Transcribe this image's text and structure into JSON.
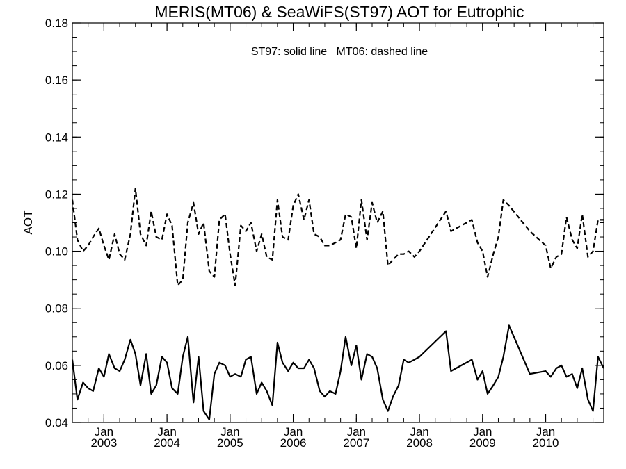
{
  "chart_data": {
    "type": "line",
    "title": "MERIS(MT06) & SeaWiFS(ST97)  AOT for Eutrophic",
    "ylabel": "AOT",
    "xlabel": "",
    "annotation": "ST97: solid line   MT06: dashed line",
    "xlim": [
      2002.5,
      2010.92
    ],
    "ylim": [
      0.04,
      0.18
    ],
    "y_ticks": [
      "0.04",
      "0.06",
      "0.08",
      "0.10",
      "0.12",
      "0.14",
      "0.16",
      "0.18"
    ],
    "x_ticks": [
      {
        "x": 2003.0,
        "month": "Jan",
        "year": "2003"
      },
      {
        "x": 2004.0,
        "month": "Jan",
        "year": "2004"
      },
      {
        "x": 2005.0,
        "month": "Jan",
        "year": "2005"
      },
      {
        "x": 2006.0,
        "month": "Jan",
        "year": "2006"
      },
      {
        "x": 2007.0,
        "month": "Jan",
        "year": "2007"
      },
      {
        "x": 2008.0,
        "month": "Jan",
        "year": "2008"
      },
      {
        "x": 2009.0,
        "month": "Jan",
        "year": "2009"
      },
      {
        "x": 2010.0,
        "month": "Jan",
        "year": "2010"
      }
    ],
    "grid": false,
    "series": [
      {
        "name": "MT06",
        "style": "dashed",
        "color": "#000000",
        "x": [
          2002.5,
          2002.58,
          2002.67,
          2002.75,
          2002.83,
          2002.92,
          2003.0,
          2003.08,
          2003.17,
          2003.25,
          2003.33,
          2003.42,
          2003.5,
          2003.58,
          2003.67,
          2003.75,
          2003.83,
          2003.92,
          2004.0,
          2004.08,
          2004.17,
          2004.25,
          2004.33,
          2004.42,
          2004.5,
          2004.58,
          2004.67,
          2004.75,
          2004.83,
          2004.92,
          2005.0,
          2005.08,
          2005.17,
          2005.25,
          2005.33,
          2005.42,
          2005.5,
          2005.58,
          2005.67,
          2005.75,
          2005.83,
          2005.92,
          2006.0,
          2006.08,
          2006.17,
          2006.25,
          2006.33,
          2006.42,
          2006.5,
          2006.58,
          2006.67,
          2006.75,
          2006.83,
          2006.92,
          2007.0,
          2007.08,
          2007.17,
          2007.25,
          2007.33,
          2007.42,
          2007.5,
          2007.58,
          2007.67,
          2007.75,
          2007.83,
          2007.92,
          2008.0,
          2008.42,
          2008.5,
          2008.58,
          2008.83,
          2008.92,
          2009.0,
          2009.08,
          2009.17,
          2009.25,
          2009.33,
          2009.42,
          2009.75,
          2010.0,
          2010.08,
          2010.17,
          2010.25,
          2010.33,
          2010.42,
          2010.5,
          2010.58,
          2010.67,
          2010.75,
          2010.83,
          2010.92
        ],
        "y": [
          0.118,
          0.104,
          0.1,
          0.102,
          0.105,
          0.108,
          0.102,
          0.097,
          0.106,
          0.099,
          0.097,
          0.106,
          0.122,
          0.106,
          0.102,
          0.114,
          0.105,
          0.104,
          0.113,
          0.109,
          0.088,
          0.09,
          0.11,
          0.117,
          0.106,
          0.11,
          0.093,
          0.091,
          0.111,
          0.113,
          0.099,
          0.088,
          0.109,
          0.107,
          0.11,
          0.1,
          0.106,
          0.098,
          0.097,
          0.118,
          0.105,
          0.104,
          0.116,
          0.12,
          0.111,
          0.118,
          0.106,
          0.105,
          0.102,
          0.102,
          0.103,
          0.104,
          0.113,
          0.112,
          0.101,
          0.118,
          0.104,
          0.117,
          0.11,
          0.114,
          0.095,
          0.097,
          0.099,
          0.099,
          0.1,
          0.098,
          0.1,
          0.114,
          0.107,
          0.108,
          0.111,
          0.103,
          0.1,
          0.091,
          0.099,
          0.105,
          0.118,
          0.116,
          0.107,
          0.102,
          0.094,
          0.098,
          0.099,
          0.112,
          0.104,
          0.101,
          0.113,
          0.098,
          0.1,
          0.111,
          0.111
        ]
      },
      {
        "name": "ST97",
        "style": "solid",
        "color": "#000000",
        "x": [
          2002.5,
          2002.58,
          2002.67,
          2002.75,
          2002.83,
          2002.92,
          2003.0,
          2003.08,
          2003.17,
          2003.25,
          2003.33,
          2003.42,
          2003.5,
          2003.58,
          2003.67,
          2003.75,
          2003.83,
          2003.92,
          2004.0,
          2004.08,
          2004.17,
          2004.25,
          2004.33,
          2004.42,
          2004.5,
          2004.58,
          2004.67,
          2004.75,
          2004.83,
          2004.92,
          2005.0,
          2005.08,
          2005.17,
          2005.25,
          2005.33,
          2005.42,
          2005.5,
          2005.58,
          2005.67,
          2005.75,
          2005.83,
          2005.92,
          2006.0,
          2006.08,
          2006.17,
          2006.25,
          2006.33,
          2006.42,
          2006.5,
          2006.58,
          2006.67,
          2006.75,
          2006.83,
          2006.92,
          2007.0,
          2007.08,
          2007.17,
          2007.25,
          2007.33,
          2007.42,
          2007.5,
          2007.58,
          2007.67,
          2007.75,
          2007.83,
          2007.92,
          2008.0,
          2008.42,
          2008.5,
          2008.58,
          2008.83,
          2008.92,
          2009.0,
          2009.08,
          2009.17,
          2009.25,
          2009.33,
          2009.42,
          2009.75,
          2010.0,
          2010.08,
          2010.17,
          2010.25,
          2010.33,
          2010.42,
          2010.5,
          2010.58,
          2010.67,
          2010.75,
          2010.83,
          2010.92
        ],
        "y": [
          0.062,
          0.048,
          0.054,
          0.052,
          0.051,
          0.059,
          0.056,
          0.064,
          0.059,
          0.058,
          0.062,
          0.069,
          0.064,
          0.053,
          0.064,
          0.05,
          0.053,
          0.063,
          0.061,
          0.052,
          0.05,
          0.063,
          0.07,
          0.047,
          0.063,
          0.044,
          0.041,
          0.057,
          0.061,
          0.06,
          0.056,
          0.057,
          0.056,
          0.062,
          0.063,
          0.05,
          0.054,
          0.051,
          0.046,
          0.068,
          0.061,
          0.058,
          0.061,
          0.059,
          0.059,
          0.062,
          0.059,
          0.051,
          0.049,
          0.051,
          0.05,
          0.058,
          0.07,
          0.06,
          0.067,
          0.055,
          0.064,
          0.063,
          0.059,
          0.048,
          0.044,
          0.049,
          0.053,
          0.062,
          0.061,
          0.062,
          0.063,
          0.072,
          0.058,
          0.059,
          0.062,
          0.055,
          0.058,
          0.05,
          0.053,
          0.056,
          0.063,
          0.074,
          0.057,
          0.058,
          0.056,
          0.059,
          0.06,
          0.056,
          0.057,
          0.052,
          0.059,
          0.048,
          0.044,
          0.063,
          0.059
        ]
      }
    ]
  }
}
